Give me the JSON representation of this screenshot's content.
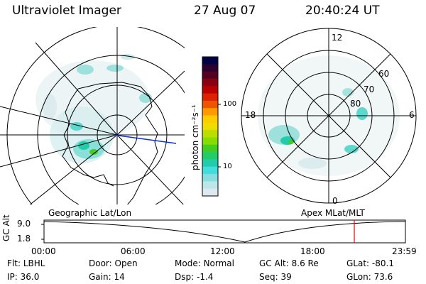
{
  "header": {
    "instrument": "Ultraviolet Imager",
    "date": "27 Aug 07",
    "time": "20:40:24 UT"
  },
  "colorbar": {
    "unit_label": "photon cm⁻²s⁻¹",
    "ticks": [
      "100",
      "10"
    ],
    "colors": [
      "#000044",
      "#2a0033",
      "#550022",
      "#880011",
      "#bb0000",
      "#dd2200",
      "#ee5500",
      "#ff9900",
      "#ffcc00",
      "#eedd00",
      "#bbdd00",
      "#88dd00",
      "#44cc22",
      "#22cc66",
      "#22ccaa",
      "#44dddd",
      "#88dde0",
      "#bbe6ea",
      "#dde9ee"
    ]
  },
  "left_map": {
    "label": "Geographic Lat/Lon"
  },
  "right_map": {
    "label": "Apex MLat/MLT",
    "mlt_labels": [
      "12",
      "18",
      "6",
      "0"
    ],
    "mlat_labels": [
      "60",
      "70",
      "80"
    ]
  },
  "timeline": {
    "y_label": "GC Alt",
    "y_ticks": [
      "9.0",
      "1.8"
    ],
    "x_ticks": [
      "00:00",
      "06:00",
      "12:00",
      "18:00",
      "23:59"
    ],
    "marker_time": "20:40:24"
  },
  "status": {
    "row1": [
      {
        "label": "Flt:",
        "value": "LBHL"
      },
      {
        "label": "Door:",
        "value": "Open"
      },
      {
        "label": "Mode:",
        "value": "Normal"
      },
      {
        "label": "GC Alt:",
        "value": "8.6 Re"
      },
      {
        "label": "GLat:",
        "value": "-80.1"
      }
    ],
    "row2": [
      {
        "label": "IP:",
        "value": "36.0"
      },
      {
        "label": "Gain:",
        "value": "14"
      },
      {
        "label": "Dsp:",
        "value": "-1.4"
      },
      {
        "label": "Seq:",
        "value": "39"
      },
      {
        "label": "GLon:",
        "value": "73.6"
      }
    ]
  }
}
